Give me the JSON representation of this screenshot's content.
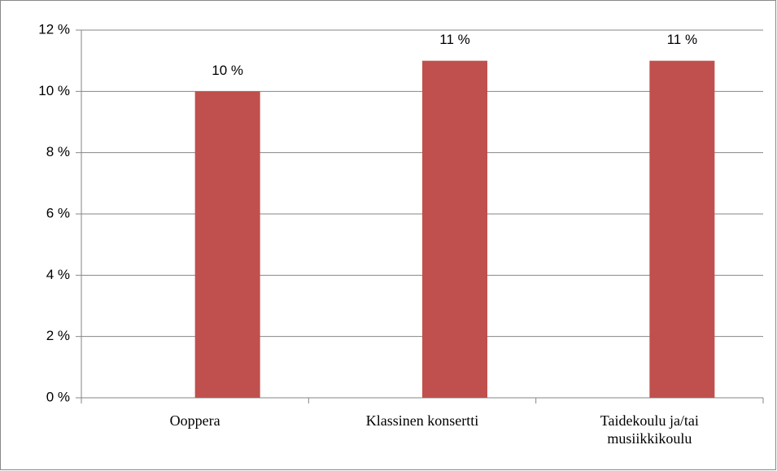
{
  "chart_data": {
    "type": "bar",
    "categories": [
      "Ooppera",
      "Klassinen konsertti",
      "Taidekoulu ja/tai musiikkikoulu"
    ],
    "values": [
      10,
      11,
      11
    ],
    "value_labels": [
      "10 %",
      "11 %",
      "11 %"
    ],
    "color": "#c0504d",
    "ylim": [
      0,
      12
    ],
    "yticks": [
      {
        "value": 0,
        "label": "0 %"
      },
      {
        "value": 2,
        "label": "2 %"
      },
      {
        "value": 4,
        "label": "4 %"
      },
      {
        "value": 6,
        "label": "6 %"
      },
      {
        "value": 8,
        "label": "8 %"
      },
      {
        "value": 10,
        "label": "10 %"
      },
      {
        "value": 12,
        "label": "12 %"
      }
    ],
    "grid": true
  }
}
